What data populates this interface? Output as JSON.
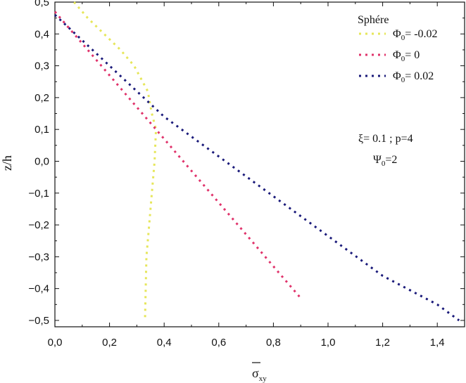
{
  "chart_data": {
    "type": "line",
    "title": "",
    "xlabel": "σxy",
    "xlabel_main": "σ",
    "xlabel_sub": "xy",
    "ylabel": "z/h",
    "xlim": [
      0.0,
      1.5
    ],
    "ylim": [
      -0.52,
      0.5
    ],
    "xticks": [
      0.0,
      0.2,
      0.4,
      0.6,
      0.8,
      1.0,
      1.2,
      1.4
    ],
    "xtick_labels": [
      "0,0",
      "0,2",
      "0,4",
      "0,6",
      "0,8",
      "1,0",
      "1,2",
      "1,4"
    ],
    "yticks": [
      0.5,
      0.4,
      0.3,
      0.2,
      0.1,
      0.0,
      -0.1,
      -0.2,
      -0.3,
      -0.4,
      -0.5
    ],
    "ytick_labels": [
      "0,5",
      "0,4",
      "0,3",
      "0,2",
      "0,1",
      "0,0",
      "−0,1",
      "−0,2",
      "−0,3",
      "−0,4",
      "−0,5"
    ],
    "grid": false,
    "legend": {
      "title": "Sphére",
      "position": "top-right"
    },
    "series": [
      {
        "name": "Φ0= -0.02",
        "label_main": "Φ",
        "label_sub": "0",
        "label_rest": "= -0.02",
        "color": "#e6e65a",
        "x": [
          0.07,
          0.12,
          0.18,
          0.24,
          0.29,
          0.34,
          0.355,
          0.37,
          0.365,
          0.355,
          0.345,
          0.335,
          0.33
        ],
        "y": [
          0.5,
          0.45,
          0.4,
          0.35,
          0.3,
          0.22,
          0.15,
          0.1,
          0.0,
          -0.1,
          -0.2,
          -0.3,
          -0.5
        ]
      },
      {
        "name": "Φ0= 0",
        "label_main": "Φ",
        "label_sub": "0",
        "label_rest": "= 0",
        "color": "#e0336b",
        "x": [
          0.0,
          0.06,
          0.12,
          0.18,
          0.24,
          0.3,
          0.36,
          0.42,
          0.48,
          0.54,
          0.6,
          0.66,
          0.72,
          0.78,
          0.84,
          0.9
        ],
        "y": [
          0.47,
          0.41,
          0.35,
          0.29,
          0.23,
          0.17,
          0.11,
          0.05,
          -0.01,
          -0.07,
          -0.13,
          -0.19,
          -0.25,
          -0.31,
          -0.37,
          -0.43
        ]
      },
      {
        "name": "Φ0= 0.02",
        "label_main": "Φ",
        "label_sub": "0",
        "label_rest": "= 0.02",
        "color": "#1a1a7a",
        "x": [
          0.0,
          0.2,
          0.4,
          0.6,
          0.8,
          1.0,
          1.2,
          1.4,
          1.48
        ],
        "y": [
          0.46,
          0.3,
          0.14,
          0.015,
          -0.11,
          -0.235,
          -0.36,
          -0.45,
          -0.5
        ]
      }
    ],
    "annotations": [
      {
        "name": "params-line-1",
        "text": "ξ= 0.1 ; p=4"
      },
      {
        "name": "params-line-2",
        "main": "Ψ",
        "sub": "0",
        "rest": "=2",
        "text": "Ψ0=2"
      }
    ]
  }
}
